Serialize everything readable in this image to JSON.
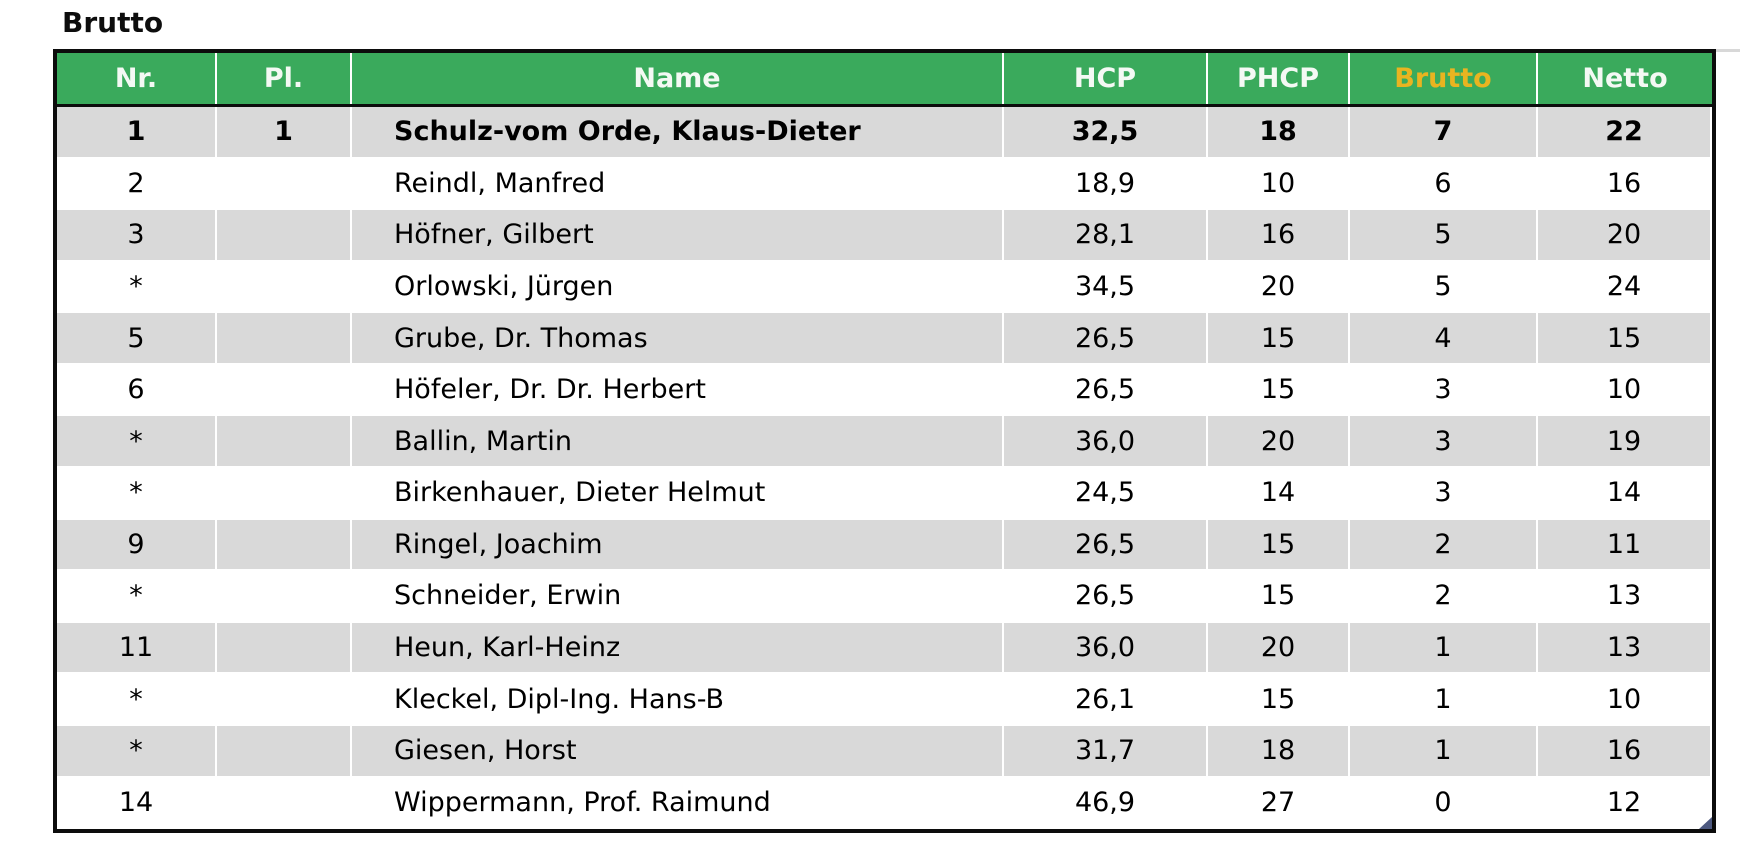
{
  "page": {
    "title": "Brutto"
  },
  "colors": {
    "header_green": "#3aaa5c",
    "header_text_white": "#f4f9f4",
    "header_text_gold": "#e9b420",
    "stripe_gray": "#d9d9d9",
    "border_black": "#0c0c0c",
    "grip_blue": "#4d5980"
  },
  "table": {
    "columns": [
      "Nr.",
      "Pl.",
      "Name",
      "HCP",
      "PHCP",
      "Brutto",
      "Netto"
    ],
    "rows": [
      {
        "nr": "1",
        "pl": "1",
        "name": "Schulz-vom Orde, Klaus-Dieter",
        "hcp": "32,5",
        "phcp": "18",
        "brutto": "7",
        "netto": "22"
      },
      {
        "nr": "2",
        "pl": "",
        "name": "Reindl, Manfred",
        "hcp": "18,9",
        "phcp": "10",
        "brutto": "6",
        "netto": "16"
      },
      {
        "nr": "3",
        "pl": "",
        "name": "Höfner, Gilbert",
        "hcp": "28,1",
        "phcp": "16",
        "brutto": "5",
        "netto": "20"
      },
      {
        "nr": "*",
        "pl": "",
        "name": "Orlowski, Jürgen",
        "hcp": "34,5",
        "phcp": "20",
        "brutto": "5",
        "netto": "24"
      },
      {
        "nr": "5",
        "pl": "",
        "name": "Grube, Dr. Thomas",
        "hcp": "26,5",
        "phcp": "15",
        "brutto": "4",
        "netto": "15"
      },
      {
        "nr": "6",
        "pl": "",
        "name": "Höfeler, Dr. Dr. Herbert",
        "hcp": "26,5",
        "phcp": "15",
        "brutto": "3",
        "netto": "10"
      },
      {
        "nr": "*",
        "pl": "",
        "name": "Ballin, Martin",
        "hcp": "36,0",
        "phcp": "20",
        "brutto": "3",
        "netto": "19"
      },
      {
        "nr": "*",
        "pl": "",
        "name": "Birkenhauer, Dieter Helmut",
        "hcp": "24,5",
        "phcp": "14",
        "brutto": "3",
        "netto": "14"
      },
      {
        "nr": "9",
        "pl": "",
        "name": "Ringel, Joachim",
        "hcp": "26,5",
        "phcp": "15",
        "brutto": "2",
        "netto": "11"
      },
      {
        "nr": "*",
        "pl": "",
        "name": "Schneider, Erwin",
        "hcp": "26,5",
        "phcp": "15",
        "brutto": "2",
        "netto": "13"
      },
      {
        "nr": "11",
        "pl": "",
        "name": "Heun, Karl-Heinz",
        "hcp": "36,0",
        "phcp": "20",
        "brutto": "1",
        "netto": "13"
      },
      {
        "nr": "*",
        "pl": "",
        "name": "Kleckel, Dipl-Ing. Hans-B",
        "hcp": "26,1",
        "phcp": "15",
        "brutto": "1",
        "netto": "10"
      },
      {
        "nr": "*",
        "pl": "",
        "name": "Giesen, Horst",
        "hcp": "31,7",
        "phcp": "18",
        "brutto": "1",
        "netto": "16"
      },
      {
        "nr": "14",
        "pl": "",
        "name": "Wippermann, Prof. Raimund",
        "hcp": "46,9",
        "phcp": "27",
        "brutto": "0",
        "netto": "12"
      }
    ]
  }
}
